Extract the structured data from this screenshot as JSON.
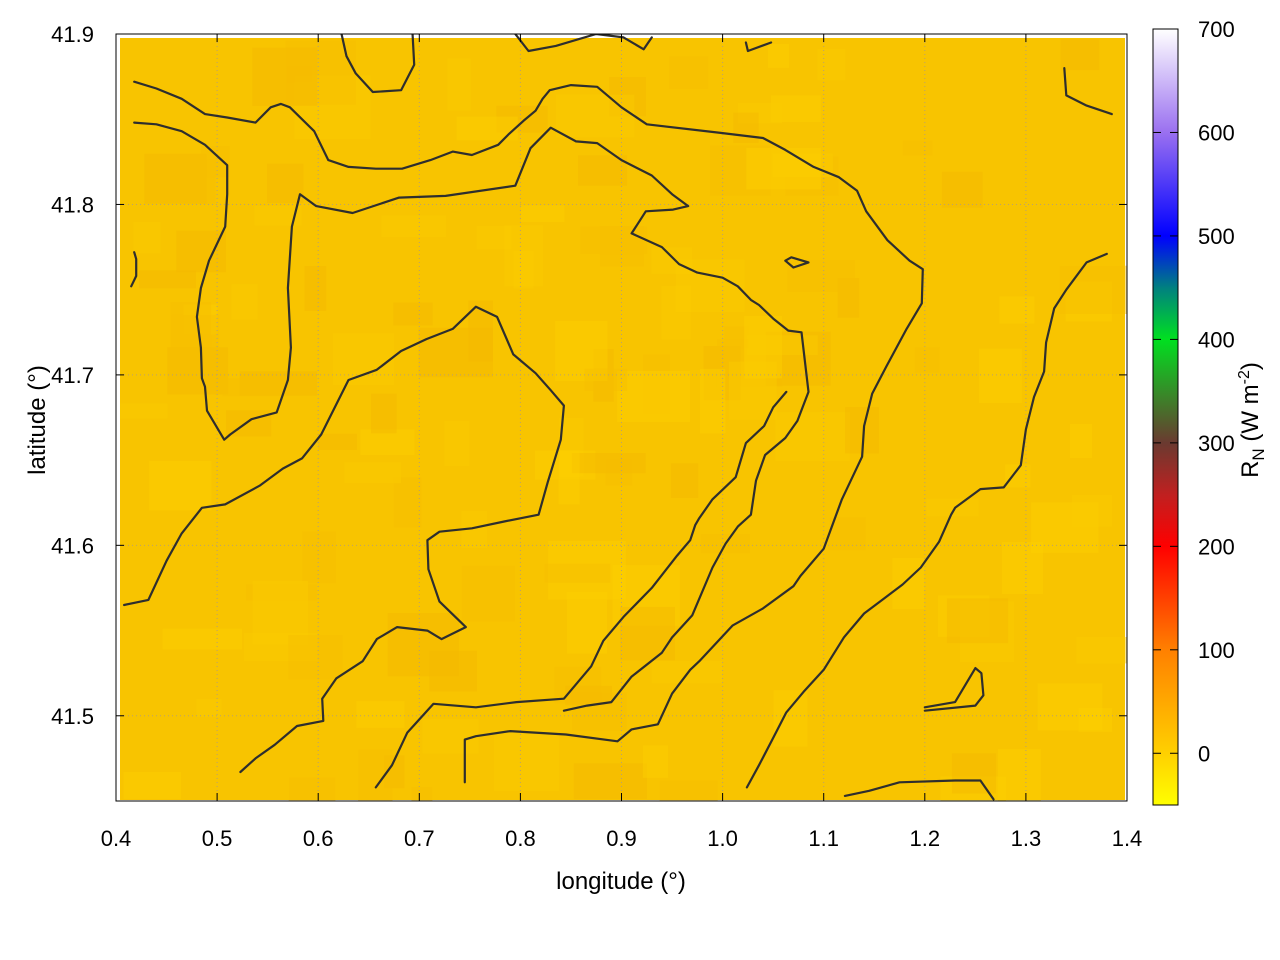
{
  "chart_data": {
    "type": "heatmap",
    "xlabel": "longitude (°)",
    "ylabel": "latitude (°)",
    "xlim": [
      0.4,
      1.4
    ],
    "ylim": [
      41.45,
      41.9
    ],
    "x_ticks": [
      "0.4",
      "0.5",
      "0.6",
      "0.7",
      "0.8",
      "0.9",
      "1.0",
      "1.1",
      "1.2",
      "1.3",
      "1.4"
    ],
    "y_ticks": [
      "41.5",
      "41.6",
      "41.7",
      "41.8",
      "41.9"
    ],
    "x_tick_values": [
      0.4,
      0.5,
      0.6,
      0.7,
      0.8,
      0.9,
      1.0,
      1.1,
      1.2,
      1.3,
      1.4
    ],
    "y_tick_values": [
      41.5,
      41.6,
      41.7,
      41.8,
      41.9
    ],
    "grid": true,
    "colorbar": {
      "label_main": "R",
      "label_sub": "N",
      "label_unit_open": " (W m",
      "label_exp": "-2",
      "label_close": ")",
      "range": [
        -50,
        700
      ],
      "ticks": [
        "0",
        "100",
        "200",
        "300",
        "400",
        "500",
        "600",
        "700"
      ],
      "tick_values": [
        0,
        100,
        200,
        300,
        400,
        500,
        600,
        700
      ],
      "stops": [
        {
          "value": -50,
          "color": "#ffff00"
        },
        {
          "value": 0,
          "color": "#ffd000"
        },
        {
          "value": 100,
          "color": "#ff8000"
        },
        {
          "value": 200,
          "color": "#ff0000"
        },
        {
          "value": 250,
          "color": "#c02020"
        },
        {
          "value": 300,
          "color": "#6a3a30"
        },
        {
          "value": 400,
          "color": "#00e020"
        },
        {
          "value": 450,
          "color": "#008080"
        },
        {
          "value": 500,
          "color": "#0000ff"
        },
        {
          "value": 600,
          "color": "#9a70f0"
        },
        {
          "value": 700,
          "color": "#ffffff"
        }
      ]
    },
    "field_value_range": [
      25,
      45
    ],
    "field_color": "#f8c400",
    "contour_color": "#2e2e2e",
    "contours": [
      [
        [
          0.418,
          41.872
        ],
        [
          0.44,
          41.868
        ],
        [
          0.465,
          41.862
        ],
        [
          0.488,
          41.853
        ],
        [
          0.51,
          41.851
        ],
        [
          0.538,
          41.848
        ],
        [
          0.553,
          41.857
        ],
        [
          0.563,
          41.859
        ],
        [
          0.572,
          41.857
        ],
        [
          0.596,
          41.843
        ],
        [
          0.61,
          41.826
        ],
        [
          0.63,
          41.822
        ],
        [
          0.657,
          41.821
        ],
        [
          0.683,
          41.821
        ],
        [
          0.711,
          41.826
        ],
        [
          0.733,
          41.831
        ],
        [
          0.752,
          41.829
        ],
        [
          0.778,
          41.835
        ],
        [
          0.788,
          41.841
        ],
        [
          0.803,
          41.849
        ],
        [
          0.815,
          41.855
        ],
        [
          0.822,
          41.862
        ],
        [
          0.829,
          41.867
        ],
        [
          0.85,
          41.87
        ],
        [
          0.876,
          41.869
        ],
        [
          0.9,
          41.857
        ],
        [
          0.925,
          41.847
        ],
        [
          0.998,
          41.842
        ],
        [
          1.04,
          41.839
        ],
        [
          1.062,
          41.832
        ],
        [
          1.09,
          41.822
        ],
        [
          1.115,
          41.816
        ],
        [
          1.133,
          41.808
        ],
        [
          1.142,
          41.796
        ],
        [
          1.163,
          41.779
        ],
        [
          1.185,
          41.767
        ],
        [
          1.198,
          41.762
        ],
        [
          1.197,
          41.742
        ],
        [
          1.182,
          41.727
        ],
        [
          1.162,
          41.705
        ],
        [
          1.148,
          41.689
        ],
        [
          1.14,
          41.67
        ],
        [
          1.138,
          41.652
        ],
        [
          1.118,
          41.627
        ],
        [
          1.1,
          41.598
        ],
        [
          1.077,
          41.582
        ],
        [
          1.07,
          41.576
        ],
        [
          1.04,
          41.563
        ],
        [
          1.01,
          41.553
        ],
        [
          0.977,
          41.532
        ],
        [
          0.968,
          41.527
        ],
        [
          0.95,
          41.513
        ],
        [
          0.936,
          41.495
        ],
        [
          0.91,
          41.492
        ],
        [
          0.896,
          41.485
        ],
        [
          0.845,
          41.489
        ],
        [
          0.79,
          41.491
        ],
        [
          0.756,
          41.488
        ],
        [
          0.745,
          41.486
        ],
        [
          0.745,
          41.461
        ]
      ],
      [
        [
          0.418,
          41.848
        ],
        [
          0.44,
          41.847
        ],
        [
          0.465,
          41.843
        ],
        [
          0.488,
          41.835
        ],
        [
          0.51,
          41.823
        ],
        [
          0.51,
          41.806
        ],
        [
          0.508,
          41.787
        ],
        [
          0.492,
          41.767
        ],
        [
          0.484,
          41.751
        ],
        [
          0.48,
          41.734
        ],
        [
          0.484,
          41.716
        ],
        [
          0.485,
          41.698
        ],
        [
          0.488,
          41.693
        ],
        [
          0.49,
          41.679
        ],
        [
          0.507,
          41.662
        ],
        [
          0.513,
          41.665
        ],
        [
          0.534,
          41.674
        ],
        [
          0.559,
          41.678
        ],
        [
          0.57,
          41.697
        ],
        [
          0.573,
          41.716
        ],
        [
          0.57,
          41.751
        ],
        [
          0.574,
          41.787
        ],
        [
          0.582,
          41.806
        ],
        [
          0.598,
          41.799
        ],
        [
          0.634,
          41.795
        ],
        [
          0.68,
          41.804
        ],
        [
          0.726,
          41.805
        ],
        [
          0.795,
          41.811
        ],
        [
          0.81,
          41.833
        ],
        [
          0.83,
          41.845
        ],
        [
          0.855,
          41.837
        ],
        [
          0.876,
          41.836
        ],
        [
          0.9,
          41.826
        ],
        [
          0.93,
          41.817
        ],
        [
          0.95,
          41.806
        ],
        [
          0.966,
          41.799
        ],
        [
          0.951,
          41.797
        ],
        [
          0.924,
          41.796
        ],
        [
          0.91,
          41.783
        ],
        [
          0.94,
          41.775
        ],
        [
          0.957,
          41.765
        ],
        [
          0.975,
          41.76
        ],
        [
          1.0,
          41.757
        ],
        [
          1.015,
          41.752
        ],
        [
          1.028,
          41.744
        ],
        [
          1.036,
          41.741
        ],
        [
          1.05,
          41.733
        ],
        [
          1.065,
          41.726
        ],
        [
          1.078,
          41.725
        ],
        [
          1.085,
          41.69
        ],
        [
          1.074,
          41.673
        ],
        [
          1.062,
          41.663
        ],
        [
          1.042,
          41.653
        ],
        [
          1.033,
          41.638
        ],
        [
          1.028,
          41.618
        ],
        [
          1.015,
          41.611
        ],
        [
          1.003,
          41.601
        ],
        [
          0.99,
          41.587
        ],
        [
          0.97,
          41.559
        ],
        [
          0.95,
          41.546
        ],
        [
          0.94,
          41.537
        ],
        [
          0.91,
          41.523
        ],
        [
          0.89,
          41.508
        ],
        [
          0.866,
          41.506
        ],
        [
          0.843,
          41.503
        ]
      ],
      [
        [
          0.408,
          41.565
        ],
        [
          0.432,
          41.568
        ],
        [
          0.45,
          41.591
        ],
        [
          0.465,
          41.607
        ],
        [
          0.485,
          41.622
        ],
        [
          0.508,
          41.624
        ],
        [
          0.542,
          41.635
        ],
        [
          0.565,
          41.645
        ],
        [
          0.584,
          41.651
        ],
        [
          0.603,
          41.665
        ],
        [
          0.63,
          41.697
        ],
        [
          0.658,
          41.703
        ],
        [
          0.682,
          41.714
        ],
        [
          0.707,
          41.721
        ],
        [
          0.733,
          41.727
        ],
        [
          0.756,
          41.74
        ],
        [
          0.777,
          41.734
        ],
        [
          0.793,
          41.712
        ],
        [
          0.815,
          41.701
        ],
        [
          0.83,
          41.691
        ],
        [
          0.843,
          41.682
        ],
        [
          0.84,
          41.662
        ],
        [
          0.827,
          41.637
        ],
        [
          0.818,
          41.618
        ],
        [
          0.784,
          41.614
        ],
        [
          0.752,
          41.61
        ],
        [
          0.72,
          41.608
        ],
        [
          0.708,
          41.603
        ],
        [
          0.709,
          41.586
        ],
        [
          0.72,
          41.567
        ],
        [
          0.746,
          41.552
        ],
        [
          0.722,
          41.545
        ],
        [
          0.708,
          41.55
        ],
        [
          0.678,
          41.552
        ],
        [
          0.658,
          41.545
        ],
        [
          0.644,
          41.532
        ],
        [
          0.618,
          41.522
        ],
        [
          0.604,
          41.51
        ],
        [
          0.605,
          41.497
        ],
        [
          0.579,
          41.494
        ],
        [
          0.557,
          41.483
        ],
        [
          0.538,
          41.475
        ],
        [
          0.523,
          41.467
        ]
      ],
      [
        [
          0.657,
          41.458
        ],
        [
          0.673,
          41.471
        ],
        [
          0.688,
          41.49
        ],
        [
          0.714,
          41.507
        ],
        [
          0.756,
          41.505
        ],
        [
          0.796,
          41.508
        ],
        [
          0.843,
          41.51
        ],
        [
          0.87,
          41.529
        ],
        [
          0.882,
          41.544
        ],
        [
          0.902,
          41.558
        ],
        [
          0.93,
          41.575
        ],
        [
          0.955,
          41.594
        ],
        [
          0.968,
          41.603
        ],
        [
          0.973,
          41.612
        ],
        [
          0.977,
          41.616
        ],
        [
          0.99,
          41.627
        ],
        [
          1.013,
          41.64
        ],
        [
          1.023,
          41.66
        ],
        [
          1.041,
          41.67
        ],
        [
          1.05,
          41.681
        ],
        [
          1.063,
          41.69
        ]
      ],
      [
        [
          1.024,
          41.458
        ],
        [
          1.036,
          41.471
        ],
        [
          1.05,
          41.487
        ],
        [
          1.063,
          41.502
        ],
        [
          1.08,
          41.514
        ],
        [
          1.1,
          41.527
        ],
        [
          1.12,
          41.546
        ],
        [
          1.14,
          41.56
        ],
        [
          1.16,
          41.569
        ],
        [
          1.178,
          41.577
        ],
        [
          1.196,
          41.587
        ],
        [
          1.214,
          41.602
        ],
        [
          1.226,
          41.618
        ],
        [
          1.23,
          41.622
        ],
        [
          1.255,
          41.633
        ],
        [
          1.278,
          41.634
        ],
        [
          1.295,
          41.647
        ],
        [
          1.3,
          41.668
        ],
        [
          1.308,
          41.687
        ],
        [
          1.318,
          41.702
        ],
        [
          1.32,
          41.719
        ],
        [
          1.328,
          41.739
        ],
        [
          1.34,
          41.75
        ],
        [
          1.36,
          41.766
        ],
        [
          1.38,
          41.771
        ]
      ],
      [
        [
          1.121,
          41.453
        ],
        [
          1.145,
          41.456
        ],
        [
          1.175,
          41.461
        ],
        [
          1.23,
          41.462
        ],
        [
          1.255,
          41.462
        ],
        [
          1.268,
          41.451
        ]
      ],
      [
        [
          1.2,
          41.503
        ],
        [
          1.25,
          41.506
        ],
        [
          1.258,
          41.512
        ],
        [
          1.256,
          41.525
        ],
        [
          1.25,
          41.528
        ],
        [
          1.23,
          41.508
        ],
        [
          1.2,
          41.505
        ]
      ],
      [
        [
          1.062,
          41.767
        ],
        [
          1.068,
          41.769
        ],
        [
          1.085,
          41.766
        ],
        [
          1.07,
          41.763
        ],
        [
          1.062,
          41.767
        ]
      ],
      [
        [
          0.622,
          41.903
        ],
        [
          0.628,
          41.887
        ],
        [
          0.637,
          41.877
        ],
        [
          0.654,
          41.866
        ],
        [
          0.682,
          41.867
        ],
        [
          0.695,
          41.882
        ],
        [
          0.693,
          41.904
        ]
      ],
      [
        [
          0.795,
          41.9
        ],
        [
          0.808,
          41.89
        ],
        [
          0.835,
          41.893
        ],
        [
          0.875,
          41.9
        ],
        [
          0.902,
          41.898
        ],
        [
          0.922,
          41.891
        ],
        [
          0.93,
          41.898
        ]
      ],
      [
        [
          1.023,
          41.895
        ],
        [
          1.025,
          41.89
        ],
        [
          1.048,
          41.895
        ]
      ],
      [
        [
          1.338,
          41.88
        ],
        [
          1.34,
          41.864
        ],
        [
          1.36,
          41.858
        ],
        [
          1.385,
          41.853
        ]
      ],
      [
        [
          0.418,
          41.772
        ],
        [
          0.42,
          41.768
        ],
        [
          0.42,
          41.758
        ],
        [
          0.415,
          41.752
        ]
      ]
    ]
  }
}
